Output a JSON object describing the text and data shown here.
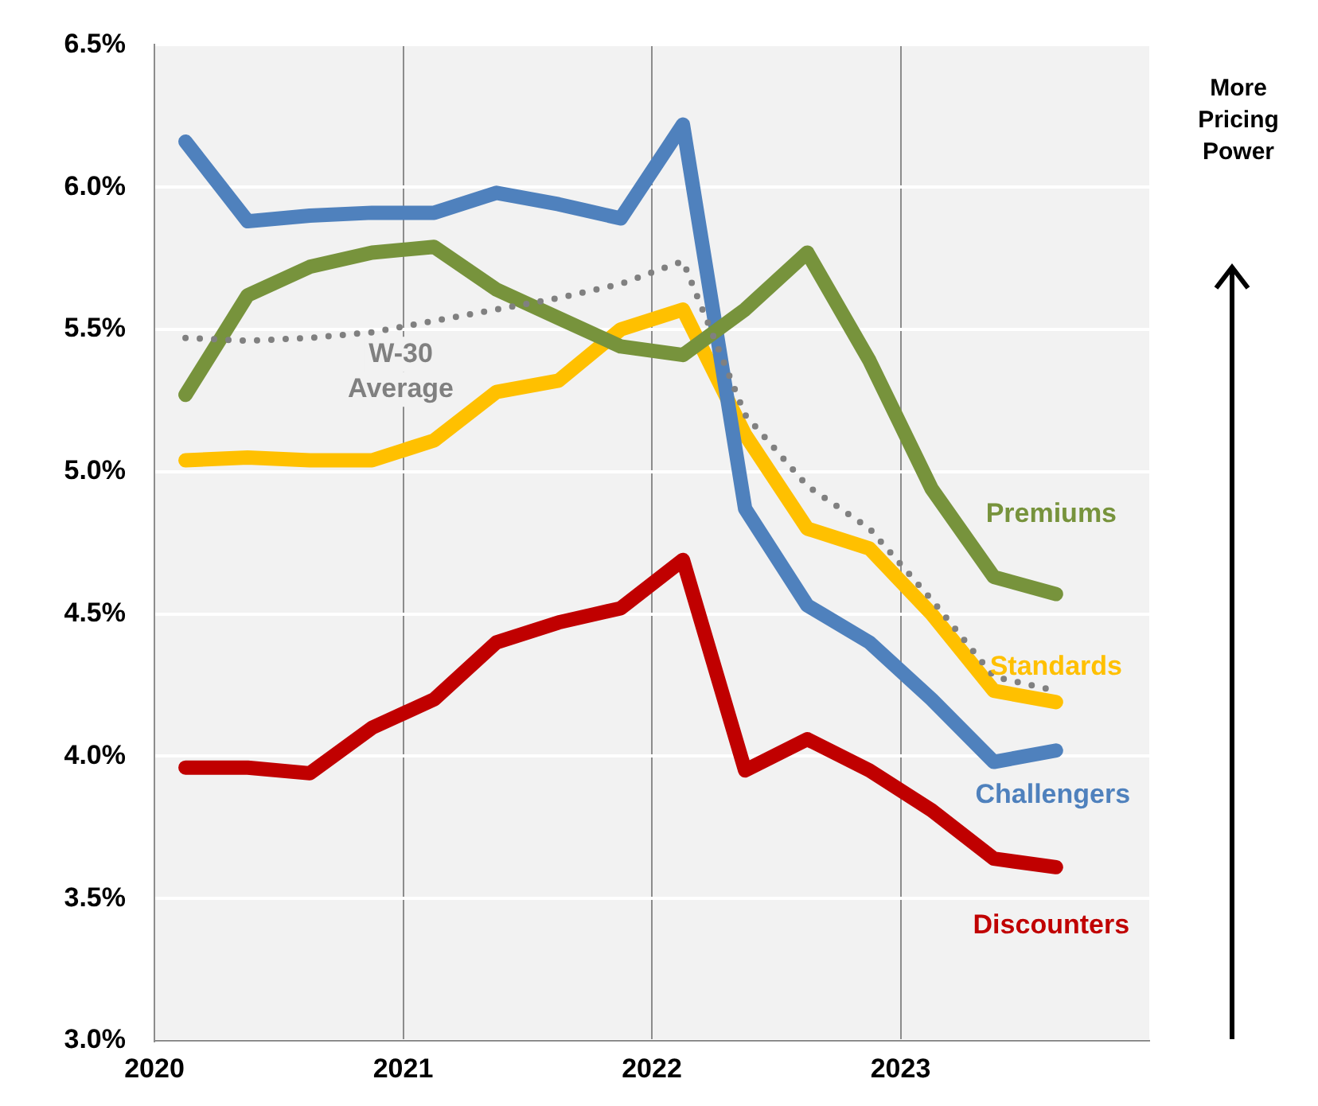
{
  "chart_data": {
    "type": "line",
    "x": [
      2020.125,
      2020.375,
      2020.625,
      2020.875,
      2021.125,
      2021.375,
      2021.625,
      2021.875,
      2022.125,
      2022.375,
      2022.625,
      2022.875,
      2023.125,
      2023.375,
      2023.625
    ],
    "xlim": [
      2020,
      2024
    ],
    "xticks": [
      2020,
      2021,
      2022,
      2023
    ],
    "ylim": [
      3,
      6.5
    ],
    "yticks": [
      {
        "value": 3,
        "label": "3.0%"
      },
      {
        "value": 3.5,
        "label": "3.5%"
      },
      {
        "value": 4,
        "label": "4.0%"
      },
      {
        "value": 4.5,
        "label": "4.5%"
      },
      {
        "value": 5,
        "label": "5.0%"
      },
      {
        "value": 5.5,
        "label": "5.5%"
      },
      {
        "value": 6,
        "label": "6.0%"
      },
      {
        "value": 6.5,
        "label": "6.5%"
      }
    ],
    "grid": true,
    "legend": false,
    "marker": "none",
    "series": [
      {
        "name": "W-30 Average",
        "color": "#808080",
        "line_style": "dotted",
        "values": [
          5.47,
          5.46,
          5.47,
          5.49,
          5.53,
          5.57,
          5.61,
          5.66,
          5.74,
          5.2,
          4.95,
          4.8,
          4.55,
          4.28,
          4.23
        ]
      },
      {
        "name": "Premiums",
        "color": "#77933c",
        "values": [
          5.27,
          5.62,
          5.72,
          5.77,
          5.79,
          5.64,
          5.54,
          5.44,
          5.41,
          5.57,
          5.77,
          5.39,
          4.94,
          4.63,
          4.57
        ]
      },
      {
        "name": "Challengers",
        "color": "#4f81bd",
        "values": [
          6.16,
          5.88,
          5.9,
          5.91,
          5.91,
          5.98,
          5.94,
          5.89,
          6.22,
          4.87,
          4.53,
          4.4,
          4.2,
          3.98,
          4.02
        ]
      },
      {
        "name": "Standards",
        "color": "#ffc000",
        "values": [
          5.04,
          5.05,
          5.04,
          5.04,
          5.11,
          5.28,
          5.32,
          5.5,
          5.57,
          5.13,
          4.8,
          4.73,
          4.5,
          4.23,
          4.19
        ]
      },
      {
        "name": "Discounters",
        "color": "#c00000",
        "values": [
          3.96,
          3.96,
          3.94,
          4.1,
          4.2,
          4.4,
          4.47,
          4.52,
          4.69,
          3.95,
          4.06,
          3.95,
          3.81,
          3.64,
          3.61
        ]
      }
    ],
    "annotations": [
      "More Pricing Power"
    ]
  }
}
